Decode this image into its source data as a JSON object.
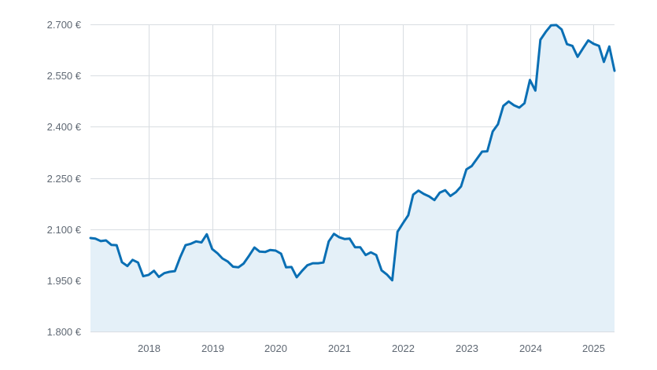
{
  "colors": {
    "line": "#0a6fb4",
    "fill": "#e4f0f8",
    "grid": "#d9dde2",
    "text": "#5f6873"
  },
  "chart_data": {
    "type": "area",
    "title": "",
    "xlabel": "",
    "ylabel": "",
    "ylim": [
      1800,
      2700
    ],
    "xlim": [
      "2017-02-01",
      "2025-05-01"
    ],
    "grid": true,
    "y_ticks": [
      {
        "value": 1800,
        "label": "1.800 €"
      },
      {
        "value": 1950,
        "label": "1.950 €"
      },
      {
        "value": 2100,
        "label": "2.100 €"
      },
      {
        "value": 2250,
        "label": "2.250 €"
      },
      {
        "value": 2400,
        "label": "2.400 €"
      },
      {
        "value": 2550,
        "label": "2.550 €"
      },
      {
        "value": 2700,
        "label": "2.700 €"
      }
    ],
    "x_ticks": [
      {
        "value": "2018-01-01",
        "label": "2018"
      },
      {
        "value": "2019-01-01",
        "label": "2019"
      },
      {
        "value": "2020-01-01",
        "label": "2020"
      },
      {
        "value": "2021-01-01",
        "label": "2021"
      },
      {
        "value": "2022-01-01",
        "label": "2022"
      },
      {
        "value": "2023-01-01",
        "label": "2023"
      },
      {
        "value": "2024-01-01",
        "label": "2024"
      },
      {
        "value": "2025-01-01",
        "label": "2025"
      }
    ],
    "series": [
      {
        "points": [
          [
            "2017-02",
            2074
          ],
          [
            "2017-03",
            2072
          ],
          [
            "2017-04",
            2065
          ],
          [
            "2017-05",
            2067
          ],
          [
            "2017-06",
            2054
          ],
          [
            "2017-07",
            2053
          ],
          [
            "2017-08",
            2003
          ],
          [
            "2017-09",
            1992
          ],
          [
            "2017-10",
            2010
          ],
          [
            "2017-11",
            2002
          ],
          [
            "2017-12",
            1962
          ],
          [
            "2018-01",
            1966
          ],
          [
            "2018-02",
            1978
          ],
          [
            "2018-03",
            1960
          ],
          [
            "2018-04",
            1971
          ],
          [
            "2018-05",
            1975
          ],
          [
            "2018-06",
            1977
          ],
          [
            "2018-07",
            2017
          ],
          [
            "2018-08",
            2053
          ],
          [
            "2018-09",
            2057
          ],
          [
            "2018-10",
            2064
          ],
          [
            "2018-11",
            2061
          ],
          [
            "2018-12",
            2085
          ],
          [
            "2019-01",
            2042
          ],
          [
            "2019-02",
            2029
          ],
          [
            "2019-03",
            2014
          ],
          [
            "2019-04",
            2005
          ],
          [
            "2019-05",
            1990
          ],
          [
            "2019-06",
            1988
          ],
          [
            "2019-07",
            1999
          ],
          [
            "2019-08",
            2022
          ],
          [
            "2019-09",
            2046
          ],
          [
            "2019-10",
            2034
          ],
          [
            "2019-11",
            2033
          ],
          [
            "2019-12",
            2039
          ],
          [
            "2020-01",
            2037
          ],
          [
            "2020-02",
            2028
          ],
          [
            "2020-03",
            1988
          ],
          [
            "2020-04",
            1989
          ],
          [
            "2020-05",
            1959
          ],
          [
            "2020-06",
            1978
          ],
          [
            "2020-07",
            1994
          ],
          [
            "2020-08",
            2000
          ],
          [
            "2020-09",
            2000
          ],
          [
            "2020-10",
            2002
          ],
          [
            "2020-11",
            2064
          ],
          [
            "2020-12",
            2086
          ],
          [
            "2021-01",
            2076
          ],
          [
            "2021-02",
            2071
          ],
          [
            "2021-03",
            2072
          ],
          [
            "2021-04",
            2047
          ],
          [
            "2021-05",
            2047
          ],
          [
            "2021-06",
            2024
          ],
          [
            "2021-07",
            2032
          ],
          [
            "2021-08",
            2024
          ],
          [
            "2021-09",
            1979
          ],
          [
            "2021-10",
            1967
          ],
          [
            "2021-11",
            1950
          ],
          [
            "2021-12",
            2092
          ],
          [
            "2022-01",
            2117
          ],
          [
            "2022-02",
            2141
          ],
          [
            "2022-03",
            2201
          ],
          [
            "2022-04",
            2213
          ],
          [
            "2022-05",
            2203
          ],
          [
            "2022-06",
            2196
          ],
          [
            "2022-07",
            2185
          ],
          [
            "2022-08",
            2207
          ],
          [
            "2022-09",
            2214
          ],
          [
            "2022-10",
            2197
          ],
          [
            "2022-11",
            2208
          ],
          [
            "2022-12",
            2225
          ],
          [
            "2023-01",
            2275
          ],
          [
            "2023-02",
            2285
          ],
          [
            "2023-03",
            2305
          ],
          [
            "2023-04",
            2327
          ],
          [
            "2023-05",
            2328
          ],
          [
            "2023-06",
            2386
          ],
          [
            "2023-07",
            2407
          ],
          [
            "2023-08",
            2461
          ],
          [
            "2023-09",
            2474
          ],
          [
            "2023-10",
            2463
          ],
          [
            "2023-11",
            2456
          ],
          [
            "2023-12",
            2469
          ],
          [
            "2024-01",
            2537
          ],
          [
            "2024-02",
            2506
          ],
          [
            "2024-03",
            2655
          ],
          [
            "2024-04",
            2678
          ],
          [
            "2024-05",
            2697
          ],
          [
            "2024-06",
            2698
          ],
          [
            "2024-07",
            2685
          ],
          [
            "2024-08",
            2642
          ],
          [
            "2024-09",
            2637
          ],
          [
            "2024-10",
            2605
          ],
          [
            "2024-11",
            2630
          ],
          [
            "2024-12",
            2653
          ],
          [
            "2025-01",
            2643
          ],
          [
            "2025-02",
            2637
          ],
          [
            "2025-03",
            2590
          ],
          [
            "2025-04",
            2635
          ],
          [
            "2025-05",
            2564
          ]
        ]
      }
    ]
  }
}
